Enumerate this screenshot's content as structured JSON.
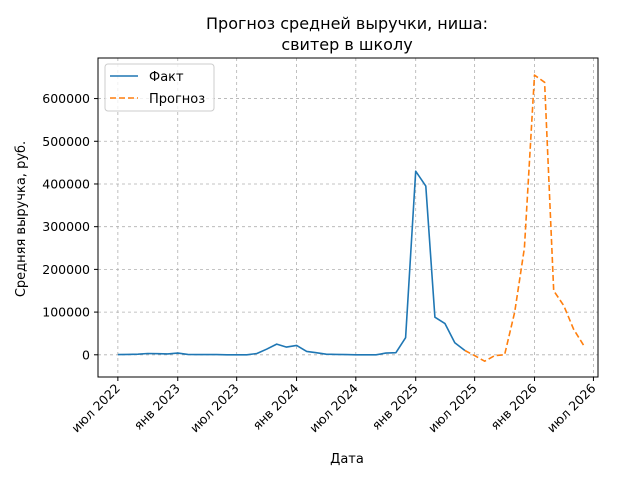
{
  "chart_data": {
    "type": "line",
    "title_line1": "Прогноз средней выручки, ниша:",
    "title_line2": "свитер в школу",
    "xlabel": "Дата",
    "ylabel": "Средняя выручка, руб.",
    "grid": true,
    "legend_position": "top-left",
    "x_axis": {
      "type": "date",
      "range": [
        "2022-05-01",
        "2026-07-15"
      ],
      "ticks": [
        {
          "date": "2022-07-01",
          "label": "июл 2022"
        },
        {
          "date": "2023-01-01",
          "label": "янв 2023"
        },
        {
          "date": "2023-07-01",
          "label": "июл 2023"
        },
        {
          "date": "2024-01-01",
          "label": "янв 2024"
        },
        {
          "date": "2024-07-01",
          "label": "июл 2024"
        },
        {
          "date": "2025-01-01",
          "label": "янв 2025"
        },
        {
          "date": "2025-07-01",
          "label": "июл 2025"
        },
        {
          "date": "2026-01-01",
          "label": "янв 2026"
        },
        {
          "date": "2026-07-01",
          "label": "июл 2026"
        }
      ]
    },
    "y_axis": {
      "range": [
        -52000,
        695000
      ],
      "ticks": [
        0,
        100000,
        200000,
        300000,
        400000,
        500000,
        600000
      ]
    },
    "series": [
      {
        "name": "Факт",
        "color": "#1f77b4",
        "style": "solid",
        "points": [
          [
            "2022-07-01",
            500
          ],
          [
            "2022-08-01",
            1000
          ],
          [
            "2022-09-01",
            1500
          ],
          [
            "2022-10-01",
            3000
          ],
          [
            "2022-11-01",
            2500
          ],
          [
            "2022-12-01",
            2000
          ],
          [
            "2023-01-01",
            4000
          ],
          [
            "2023-02-01",
            1000
          ],
          [
            "2023-03-01",
            500
          ],
          [
            "2023-04-01",
            500
          ],
          [
            "2023-05-01",
            500
          ],
          [
            "2023-06-01",
            0
          ],
          [
            "2023-07-01",
            0
          ],
          [
            "2023-08-01",
            0
          ],
          [
            "2023-09-01",
            3000
          ],
          [
            "2023-10-01",
            13000
          ],
          [
            "2023-11-01",
            25000
          ],
          [
            "2023-12-01",
            18000
          ],
          [
            "2024-01-01",
            22000
          ],
          [
            "2024-02-01",
            8000
          ],
          [
            "2024-03-01",
            5000
          ],
          [
            "2024-04-01",
            1500
          ],
          [
            "2024-05-01",
            1000
          ],
          [
            "2024-06-01",
            500
          ],
          [
            "2024-07-01",
            0
          ],
          [
            "2024-08-01",
            0
          ],
          [
            "2024-09-01",
            0
          ],
          [
            "2024-10-01",
            4000
          ],
          [
            "2024-11-01",
            5000
          ],
          [
            "2024-12-01",
            40000
          ],
          [
            "2025-01-01",
            430000
          ],
          [
            "2025-02-01",
            395000
          ],
          [
            "2025-03-01",
            88000
          ],
          [
            "2025-04-01",
            73000
          ],
          [
            "2025-05-01",
            28000
          ],
          [
            "2025-06-01",
            10000
          ]
        ]
      },
      {
        "name": "Прогноз",
        "color": "#ff7f0e",
        "style": "dashed",
        "points": [
          [
            "2025-06-01",
            10000
          ],
          [
            "2025-07-01",
            -2000
          ],
          [
            "2025-08-01",
            -15000
          ],
          [
            "2025-09-01",
            -2000
          ],
          [
            "2025-10-01",
            0
          ],
          [
            "2025-11-01",
            100000
          ],
          [
            "2025-12-01",
            250000
          ],
          [
            "2026-01-01",
            655000
          ],
          [
            "2026-02-01",
            638000
          ],
          [
            "2026-03-01",
            150000
          ],
          [
            "2026-04-01",
            115000
          ],
          [
            "2026-05-01",
            60000
          ],
          [
            "2026-06-01",
            22000
          ]
        ]
      }
    ]
  }
}
